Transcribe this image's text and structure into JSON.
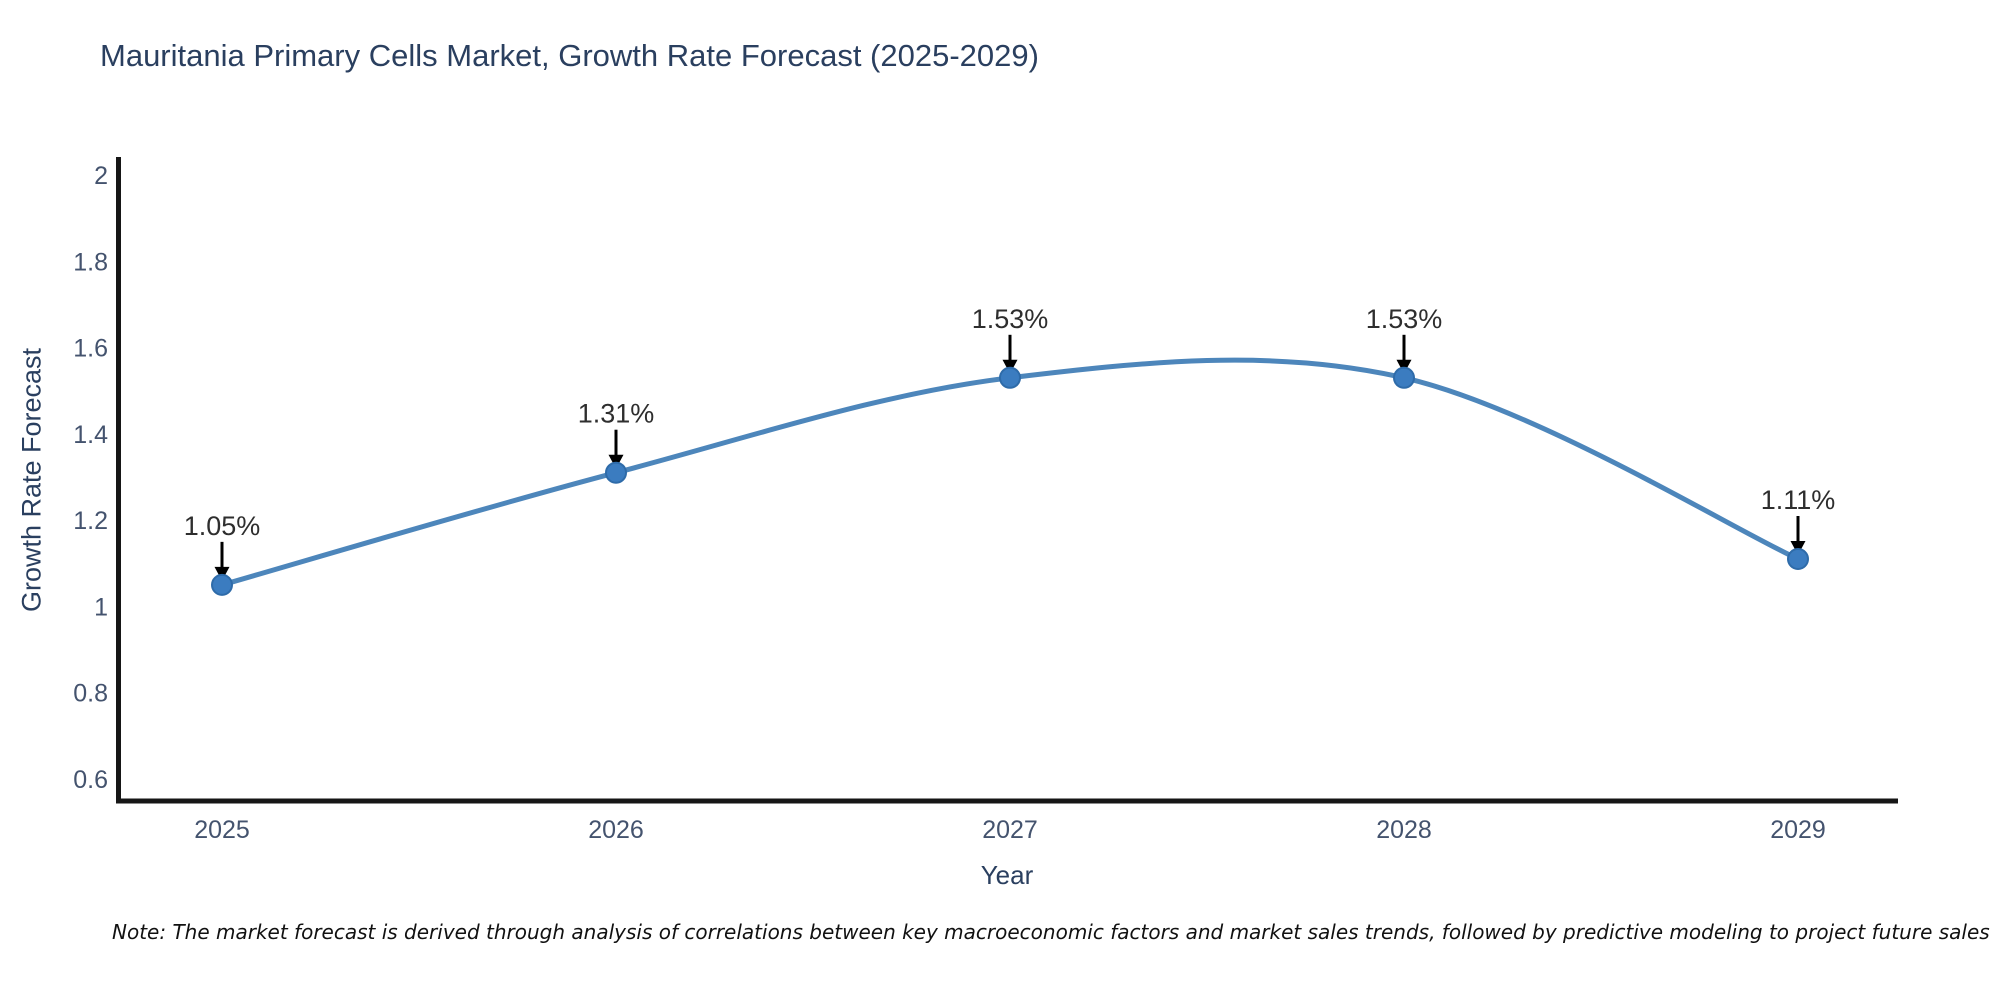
{
  "title": "Mauritania Primary Cells Market, Growth Rate Forecast (2025-2029)",
  "note": "Note: The market forecast is derived through analysis of correlations between key macroeconomic factors and market sales trends, followed by predictive modeling to project future sales",
  "colors": {
    "background": "#ffffff",
    "title_text": "#2a3f5f",
    "axis_line": "#161616",
    "tick_label": "#44536e",
    "line": "#4d86bb",
    "marker_fill": "#3b7cc0",
    "marker_edge": "#2e6ba9",
    "annotation_text": "#2e2e2e",
    "annotation_arrow": "#000000"
  },
  "chart_data": {
    "type": "line",
    "title": "Mauritania Primary Cells Market, Growth Rate Forecast (2025-2029)",
    "xlabel": "Year",
    "ylabel": "Growth Rate Forecast",
    "x": [
      2025,
      2026,
      2027,
      2028,
      2029
    ],
    "values": [
      1.05,
      1.31,
      1.53,
      1.53,
      1.11
    ],
    "point_labels": [
      "1.05%",
      "1.31%",
      "1.53%",
      "1.53%",
      "1.11%"
    ],
    "x_ticks": [
      "2025",
      "2026",
      "2027",
      "2028",
      "2029"
    ],
    "y_ticks": [
      2,
      1.8,
      1.6,
      1.4,
      1.2,
      1,
      0.8,
      0.6
    ],
    "ylim": [
      0.53,
      2.1
    ],
    "grid": false,
    "legend": false,
    "line_style": "spline",
    "markers": true,
    "annotations": "arrow-down-at-each-point"
  }
}
